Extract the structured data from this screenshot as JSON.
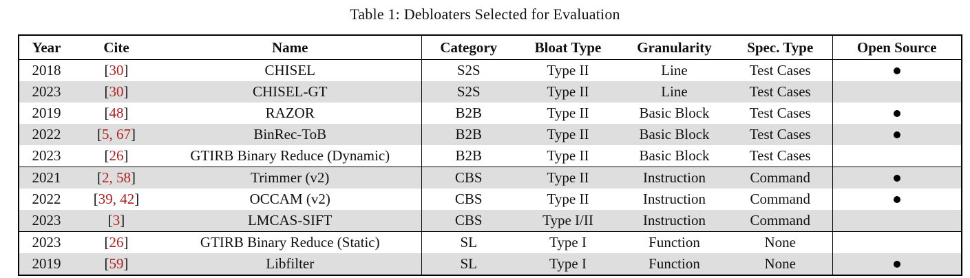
{
  "caption": "Table 1: Debloaters Selected for Evaluation",
  "colors": {
    "citation": "#b31b1b",
    "row_shade": "#dedede",
    "border": "#000000",
    "text": "#111111",
    "background": "#ffffff"
  },
  "table": {
    "columns": [
      "Year",
      "Cite",
      "Name",
      "Category",
      "Bloat Type",
      "Granularity",
      "Spec. Type",
      "Open Source"
    ],
    "cite_bracket_open": "[",
    "cite_bracket_close": "]",
    "open_source_marker": "●",
    "rows": [
      {
        "year": "2018",
        "cite": "30",
        "name": "CHISEL",
        "category": "S2S",
        "bloat_type": "Type II",
        "granularity": "Line",
        "spec_type": "Test Cases",
        "open_source": true,
        "shaded": false,
        "group_separator_above": false
      },
      {
        "year": "2023",
        "cite": "30",
        "name": "CHISEL-GT",
        "category": "S2S",
        "bloat_type": "Type II",
        "granularity": "Line",
        "spec_type": "Test Cases",
        "open_source": false,
        "shaded": true,
        "group_separator_above": false
      },
      {
        "year": "2019",
        "cite": "48",
        "name": "RAZOR",
        "category": "B2B",
        "bloat_type": "Type II",
        "granularity": "Basic Block",
        "spec_type": "Test Cases",
        "open_source": true,
        "shaded": false,
        "group_separator_above": false
      },
      {
        "year": "2022",
        "cite": "5, 67",
        "name": "BinRec-ToB",
        "category": "B2B",
        "bloat_type": "Type II",
        "granularity": "Basic Block",
        "spec_type": "Test Cases",
        "open_source": true,
        "shaded": true,
        "group_separator_above": false
      },
      {
        "year": "2023",
        "cite": "26",
        "name": "GTIRB Binary Reduce (Dynamic)",
        "category": "B2B",
        "bloat_type": "Type II",
        "granularity": "Basic Block",
        "spec_type": "Test Cases",
        "open_source": false,
        "shaded": false,
        "group_separator_above": false
      },
      {
        "year": "2021",
        "cite": "2, 58",
        "name": "Trimmer (v2)",
        "category": "CBS",
        "bloat_type": "Type II",
        "granularity": "Instruction",
        "spec_type": "Command",
        "open_source": true,
        "shaded": true,
        "group_separator_above": true
      },
      {
        "year": "2022",
        "cite": "39, 42",
        "name": "OCCAM (v2)",
        "category": "CBS",
        "bloat_type": "Type II",
        "granularity": "Instruction",
        "spec_type": "Command",
        "open_source": true,
        "shaded": false,
        "group_separator_above": false
      },
      {
        "year": "2023",
        "cite": "3",
        "name": "LMCAS-SIFT",
        "category": "CBS",
        "bloat_type": "Type I/II",
        "granularity": "Instruction",
        "spec_type": "Command",
        "open_source": false,
        "shaded": true,
        "group_separator_above": false
      },
      {
        "year": "2023",
        "cite": "26",
        "name": "GTIRB Binary Reduce (Static)",
        "category": "SL",
        "bloat_type": "Type I",
        "granularity": "Function",
        "spec_type": "None",
        "open_source": false,
        "shaded": false,
        "group_separator_above": true
      },
      {
        "year": "2019",
        "cite": "59",
        "name": "Libfilter",
        "category": "SL",
        "bloat_type": "Type I",
        "granularity": "Function",
        "spec_type": "None",
        "open_source": true,
        "shaded": true,
        "group_separator_above": false
      }
    ]
  }
}
